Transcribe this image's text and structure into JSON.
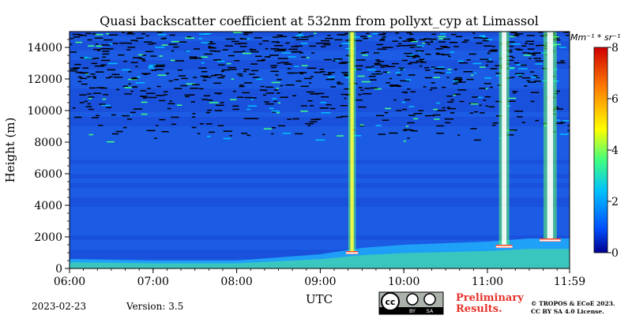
{
  "chart_data": {
    "type": "heatmap",
    "title": "Quasi backscatter coefficient at 532nm from pollyxt_cyp at Limassol",
    "xlabel": "UTC",
    "ylabel": "Height (m)",
    "x_ticks": [
      "06:00",
      "07:00",
      "08:00",
      "09:00",
      "10:00",
      "11:00",
      "11:59"
    ],
    "x_tick_hours": [
      6.0,
      7.0,
      8.0,
      9.0,
      10.0,
      11.0,
      11.983
    ],
    "xlim_hours": [
      6.0,
      11.983
    ],
    "y_ticks": [
      "0",
      "2000",
      "4000",
      "6000",
      "8000",
      "10000",
      "12000",
      "14000"
    ],
    "y_tick_values": [
      0,
      2000,
      4000,
      6000,
      8000,
      10000,
      12000,
      14000
    ],
    "ylim": [
      0,
      15000
    ],
    "colorbar": {
      "label": "Mm⁻¹ * sr⁻¹",
      "ticks": [
        "0",
        "2",
        "4",
        "6",
        "8"
      ],
      "tick_values": [
        0,
        2,
        4,
        6,
        8
      ],
      "range": [
        0,
        8
      ],
      "colormap": "jet",
      "colors": [
        "#00008f",
        "#0050ff",
        "#00c0ff",
        "#40ff80",
        "#ffff00",
        "#ff8000",
        "#d00000"
      ]
    },
    "features": {
      "boundary_layer": [
        {
          "t": 6.0,
          "h": 600
        },
        {
          "t": 7.0,
          "h": 500
        },
        {
          "t": 8.0,
          "h": 500
        },
        {
          "t": 9.0,
          "h": 900
        },
        {
          "t": 9.5,
          "h": 1300
        },
        {
          "t": 10.0,
          "h": 1500
        },
        {
          "t": 10.5,
          "h": 1600
        },
        {
          "t": 11.0,
          "h": 1700
        },
        {
          "t": 11.5,
          "h": 1900
        },
        {
          "t": 11.983,
          "h": 1900
        }
      ],
      "cloud_columns": [
        {
          "t": 9.38,
          "base": 1000,
          "strength": 3
        },
        {
          "t": 11.2,
          "base": 1400,
          "strength": 5
        },
        {
          "t": 11.75,
          "base": 1800,
          "strength": 7
        }
      ],
      "noise_above_m": 11000
    }
  },
  "footer": {
    "date": "2023-02-23",
    "version": "Version: 3.5",
    "preliminary_line1": "Preliminary",
    "preliminary_line2": "Results.",
    "copyright_line1": "© TROPOS & ECoE 2023.",
    "copyright_line2": "CC BY SA 4.0 License.",
    "license_badge": {
      "cc": "cc",
      "by": "BY",
      "sa": "SA"
    }
  }
}
